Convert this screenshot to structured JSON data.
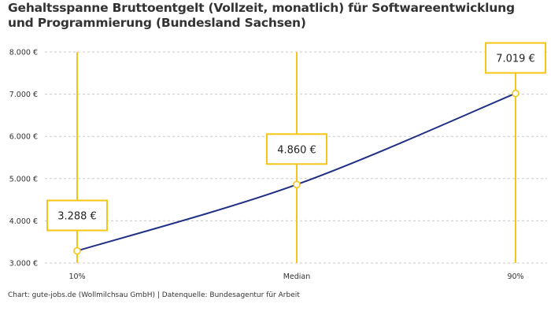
{
  "chart_data": {
    "type": "line",
    "title": "Gehaltsspanne Bruttoentgelt (Vollzeit, monatlich) für Softwareentwicklung und Programmierung (Bundesland Sachsen)",
    "categories": [
      "10%",
      "Median",
      "90%"
    ],
    "series": [
      {
        "values": [
          3288,
          4860,
          7019
        ],
        "value_labels": [
          "3.288 €",
          "4.860 €",
          "7.019 €"
        ]
      }
    ],
    "ylim": [
      3000,
      8000
    ],
    "y_ticks": [
      3000,
      4000,
      5000,
      6000,
      7000,
      8000
    ],
    "y_tick_labels": [
      "3.000 €",
      "4.000 €",
      "5.000 €",
      "6.000 €",
      "7.000 €",
      "8.000 €"
    ],
    "grid": true,
    "line_color": "#1f2f86",
    "marker_color": "#f5c518"
  },
  "footer": "Chart: gute-jobs.de (Wollmilchsau GmbH) | Datenquelle: Bundesagentur für Arbeit"
}
